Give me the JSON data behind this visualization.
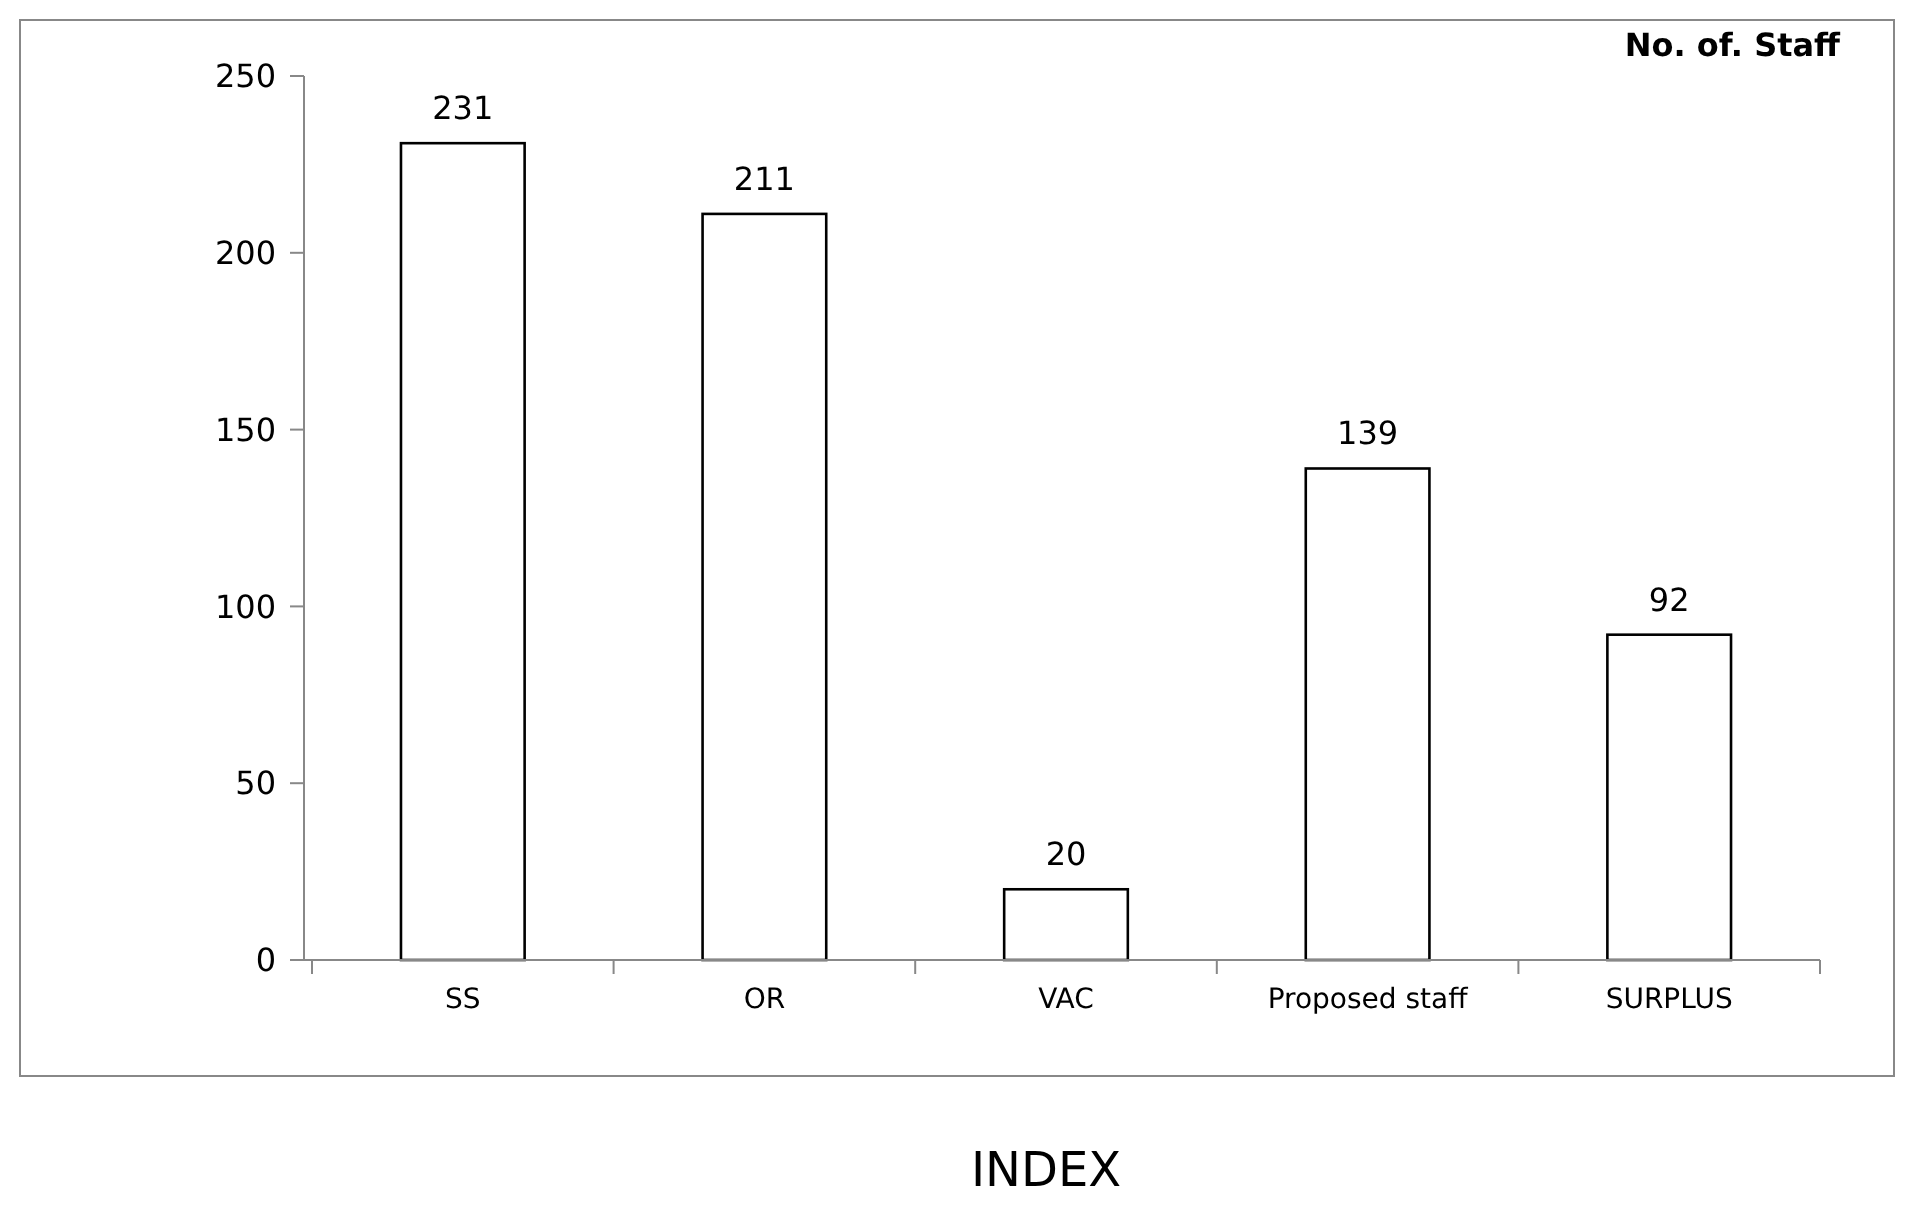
{
  "chart_data": {
    "type": "bar",
    "title": "No. of. Staff",
    "xlabel": "INDEX",
    "categories": [
      "SS",
      "OR",
      "VAC",
      "Proposed staff",
      "SURPLUS"
    ],
    "values": [
      231,
      211,
      20,
      139,
      92
    ],
    "color": "#ffffff",
    "ylim": [
      0,
      250
    ],
    "yticks": [
      0,
      50,
      100,
      150,
      200,
      250
    ],
    "grid": false,
    "data_labels": true
  }
}
